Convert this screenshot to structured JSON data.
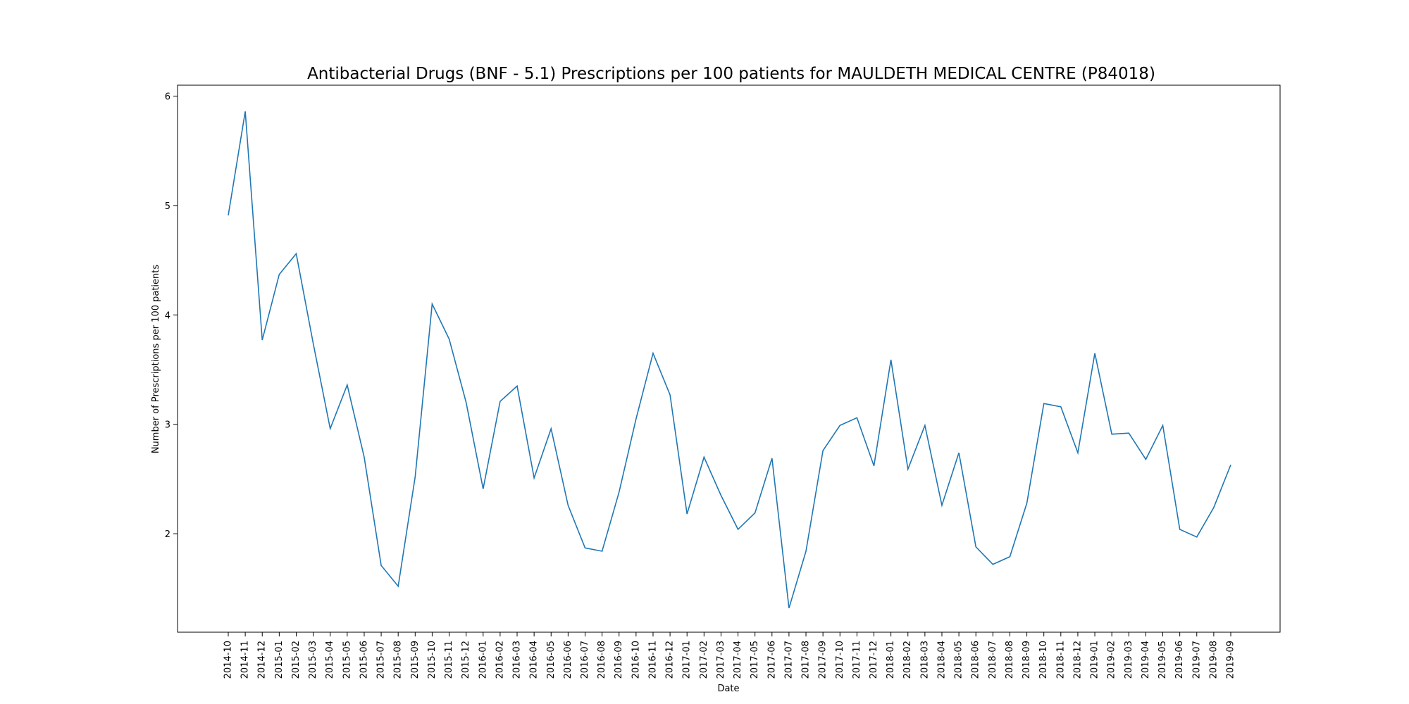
{
  "chart_data": {
    "type": "line",
    "title": "Antibacterial Drugs (BNF - 5.1) Prescriptions per 100 patients for MAULDETH MEDICAL CENTRE (P84018)",
    "xlabel": "Date",
    "ylabel": "Number of Prescriptions per 100 patients",
    "ylim": [
      1.1,
      6.1
    ],
    "yticks": [
      2,
      3,
      4,
      5,
      6
    ],
    "grid": false,
    "line_color": "#1f77b4",
    "categories": [
      "2014-10",
      "2014-11",
      "2014-12",
      "2015-01",
      "2015-02",
      "2015-03",
      "2015-04",
      "2015-05",
      "2015-06",
      "2015-07",
      "2015-08",
      "2015-09",
      "2015-10",
      "2015-11",
      "2015-12",
      "2016-01",
      "2016-02",
      "2016-03",
      "2016-04",
      "2016-05",
      "2016-06",
      "2016-07",
      "2016-08",
      "2016-09",
      "2016-10",
      "2016-11",
      "2016-12",
      "2017-01",
      "2017-02",
      "2017-03",
      "2017-04",
      "2017-05",
      "2017-06",
      "2017-07",
      "2017-08",
      "2017-09",
      "2017-10",
      "2017-11",
      "2017-12",
      "2018-01",
      "2018-02",
      "2018-03",
      "2018-04",
      "2018-05",
      "2018-06",
      "2018-07",
      "2018-08",
      "2018-09",
      "2018-10",
      "2018-11",
      "2018-12",
      "2019-01",
      "2019-02",
      "2019-03",
      "2019-04",
      "2019-05",
      "2019-06",
      "2019-07",
      "2019-08",
      "2019-09"
    ],
    "values": [
      4.91,
      5.86,
      3.77,
      4.37,
      4.56,
      3.74,
      2.96,
      3.36,
      2.7,
      1.71,
      1.52,
      2.52,
      4.1,
      3.78,
      3.2,
      2.41,
      3.21,
      3.35,
      2.51,
      2.96,
      2.26,
      1.87,
      1.84,
      2.38,
      3.05,
      3.65,
      3.27,
      2.18,
      2.7,
      2.35,
      2.04,
      2.19,
      2.69,
      1.32,
      1.84,
      2.76,
      2.99,
      3.06,
      2.62,
      3.59,
      2.59,
      2.99,
      2.26,
      2.74,
      1.88,
      1.72,
      1.79,
      2.28,
      3.19,
      3.16,
      2.74,
      3.65,
      2.91,
      2.92,
      2.68,
      2.99,
      2.04,
      1.97,
      2.24,
      2.63
    ]
  }
}
